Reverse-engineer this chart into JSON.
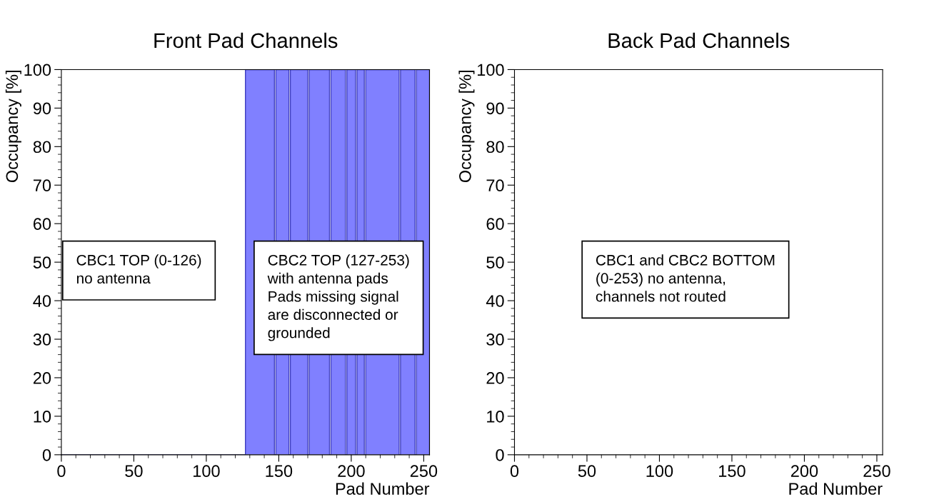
{
  "chart_data": [
    {
      "type": "histogram",
      "title": "Front Pad Channels",
      "xlabel": "Pad Number",
      "ylabel": "Occupancy [%]",
      "color": "#8080ff",
      "bins": [
        0,
        127,
        147,
        148,
        157,
        158,
        170,
        171,
        185,
        186,
        196,
        197,
        203,
        204,
        209,
        210,
        233,
        234,
        244,
        245,
        254
      ],
      "values": [
        0,
        100,
        0,
        100,
        0,
        100,
        0,
        100,
        0,
        100,
        0,
        100,
        0,
        100,
        0,
        100,
        0,
        100,
        0,
        100
      ],
      "xlim": [
        0,
        254
      ],
      "xticks": [
        0,
        50,
        100,
        150,
        200,
        250
      ],
      "ylim": [
        0,
        100
      ],
      "yticks": [
        0,
        10,
        20,
        30,
        40,
        50,
        60,
        70,
        80,
        90,
        100
      ],
      "grid": false,
      "annotations": [
        "CBC1 TOP (0-126)\nno antenna",
        "CBC2 TOP (127-253)\nwith antenna pads\nPads missing signal\nare disconnected or\ngrounded"
      ]
    },
    {
      "type": "histogram",
      "title": "Back Pad Channels",
      "xlabel": "Pad Number",
      "ylabel": "Occupancy [%]",
      "xlim": [
        0,
        254
      ],
      "xticks": [
        0,
        50,
        100,
        150,
        200,
        250
      ],
      "ylim": [
        0,
        100
      ],
      "yticks": [
        0,
        10,
        20,
        30,
        40,
        50,
        60,
        70,
        80,
        90,
        100
      ],
      "grid": false,
      "annotations": [
        "CBC1 and CBC2 BOTTOM\n(0-253) no antenna,\nchannels not routed"
      ]
    }
  ]
}
